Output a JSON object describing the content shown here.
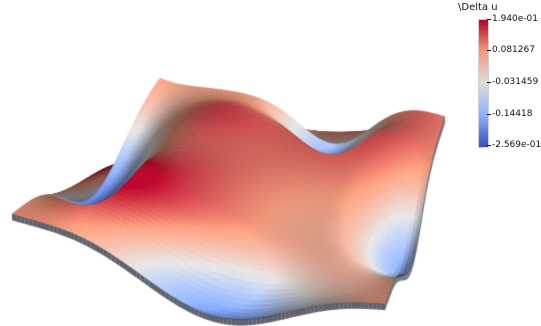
{
  "colorbar": {
    "title": "\\Delta u",
    "labels": [
      "1.940e-01",
      "0.081267",
      "-0.031459",
      "-0.14418",
      "-2.569e-01"
    ],
    "min": -0.2569,
    "max": 0.194,
    "colors": {
      "high": "#b40426",
      "mid_high": "#f49a7b",
      "mid": "#dddddd",
      "mid_low": "#8db0fe",
      "low": "#3b4cc0"
    }
  },
  "surface": {
    "colormap": "cool-to-warm",
    "background": "#ffffff"
  }
}
